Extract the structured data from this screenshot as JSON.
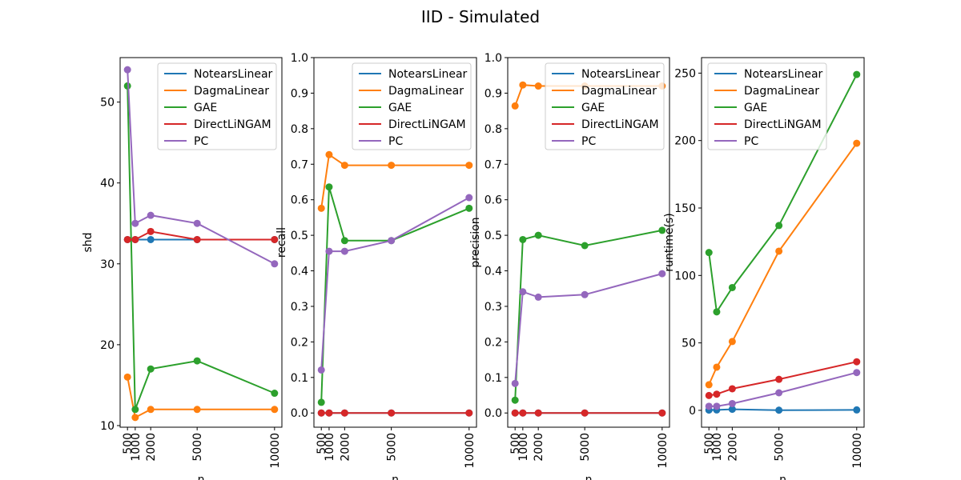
{
  "figure": {
    "title": "IID - Simulated"
  },
  "series_names": [
    "NotearsLinear",
    "DagmaLinear",
    "GAE",
    "DirectLiNGAM",
    "PC"
  ],
  "colors": [
    "#1f77b4",
    "#ff7f0e",
    "#2ca02c",
    "#d62728",
    "#9467bd"
  ],
  "chart_data": [
    {
      "type": "line",
      "xlabel": "n",
      "ylabel": "shd",
      "x": [
        500,
        1000,
        2000,
        5000,
        10000
      ],
      "xticks": [
        "500",
        "1000",
        "2000",
        "5000",
        "10000"
      ],
      "ylim": [
        9.8,
        55.5
      ],
      "yticks": [
        10,
        20,
        30,
        40,
        50
      ],
      "legend": "upper right",
      "series": [
        {
          "name": "NotearsLinear",
          "values": [
            33,
            33,
            33,
            33,
            33
          ]
        },
        {
          "name": "DagmaLinear",
          "values": [
            16,
            11,
            12,
            12,
            12
          ]
        },
        {
          "name": "GAE",
          "values": [
            52,
            12,
            17,
            18,
            14
          ]
        },
        {
          "name": "DirectLiNGAM",
          "values": [
            33,
            33,
            34,
            33,
            33
          ]
        },
        {
          "name": "PC",
          "values": [
            54,
            35,
            36,
            35,
            30
          ]
        }
      ]
    },
    {
      "type": "line",
      "xlabel": "n",
      "ylabel": "recall",
      "x": [
        500,
        1000,
        2000,
        5000,
        10000
      ],
      "xticks": [
        "500",
        "1000",
        "2000",
        "5000",
        "10000"
      ],
      "ylim": [
        -0.04,
        1.0
      ],
      "yticks": [
        0.0,
        0.1,
        0.2,
        0.3,
        0.4,
        0.5,
        0.6,
        0.7,
        0.8,
        0.9,
        1.0
      ],
      "legend": "upper right",
      "series": [
        {
          "name": "NotearsLinear",
          "values": [
            0,
            0,
            0,
            0,
            0
          ]
        },
        {
          "name": "DagmaLinear",
          "values": [
            0.576,
            0.727,
            0.697,
            0.697,
            0.697
          ]
        },
        {
          "name": "GAE",
          "values": [
            0.03,
            0.636,
            0.485,
            0.485,
            0.576
          ]
        },
        {
          "name": "DirectLiNGAM",
          "values": [
            0,
            0,
            0,
            0,
            0
          ]
        },
        {
          "name": "PC",
          "values": [
            0.121,
            0.455,
            0.455,
            0.485,
            0.606
          ]
        }
      ]
    },
    {
      "type": "line",
      "xlabel": "n",
      "ylabel": "precision",
      "x": [
        500,
        1000,
        2000,
        5000,
        10000
      ],
      "xticks": [
        "500",
        "1000",
        "2000",
        "5000",
        "10000"
      ],
      "ylim": [
        -0.04,
        1.0
      ],
      "yticks": [
        0.0,
        0.1,
        0.2,
        0.3,
        0.4,
        0.5,
        0.6,
        0.7,
        0.8,
        0.9,
        1.0
      ],
      "legend": "upper right",
      "series": [
        {
          "name": "NotearsLinear",
          "values": [
            0,
            0,
            0,
            0,
            0
          ]
        },
        {
          "name": "DagmaLinear",
          "values": [
            0.864,
            0.923,
            0.92,
            0.92,
            0.92
          ]
        },
        {
          "name": "GAE",
          "values": [
            0.036,
            0.488,
            0.5,
            0.471,
            0.514
          ]
        },
        {
          "name": "DirectLiNGAM",
          "values": [
            0,
            0,
            0,
            0,
            0
          ]
        },
        {
          "name": "PC",
          "values": [
            0.083,
            0.341,
            0.326,
            0.333,
            0.392
          ]
        }
      ]
    },
    {
      "type": "line",
      "xlabel": "n",
      "ylabel": "runtime(s)",
      "x": [
        500,
        1000,
        2000,
        5000,
        10000
      ],
      "xticks": [
        "500",
        "1000",
        "2000",
        "5000",
        "10000"
      ],
      "ylim": [
        -12.5,
        261.5
      ],
      "yticks": [
        0,
        50,
        100,
        150,
        200,
        250
      ],
      "legend": "upper left",
      "series": [
        {
          "name": "NotearsLinear",
          "values": [
            0.2,
            0.3,
            0.8,
            0.1,
            0.3
          ]
        },
        {
          "name": "DagmaLinear",
          "values": [
            19,
            32,
            51,
            118,
            198
          ]
        },
        {
          "name": "GAE",
          "values": [
            117,
            73,
            91,
            137,
            249
          ]
        },
        {
          "name": "DirectLiNGAM",
          "values": [
            11,
            12,
            16,
            23,
            36
          ]
        },
        {
          "name": "PC",
          "values": [
            3,
            3,
            5,
            13,
            28
          ]
        }
      ]
    }
  ]
}
